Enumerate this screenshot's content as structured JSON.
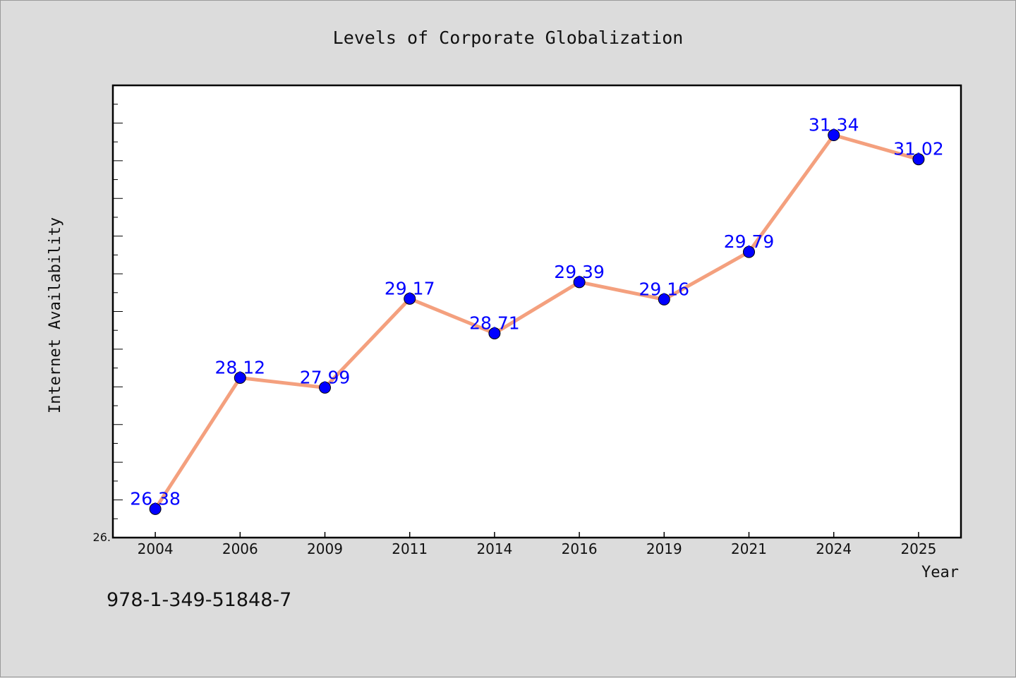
{
  "chart_data": {
    "type": "line",
    "title": "Levels of Corporate Globalization",
    "xlabel": "Year",
    "ylabel": "Internet Availability",
    "categories": [
      "2004",
      "2006",
      "2009",
      "2011",
      "2014",
      "2016",
      "2019",
      "2021",
      "2024",
      "2025"
    ],
    "series": [
      {
        "values": [
          26.38,
          28.12,
          27.99,
          29.17,
          28.71,
          29.39,
          29.16,
          29.79,
          31.34,
          31.02
        ]
      }
    ],
    "data_labels": [
      "26.38",
      "28.12",
      "27.99",
      "29.17",
      "28.71",
      "29.39",
      "29.16",
      "29.79",
      "31.34",
      "31.02"
    ],
    "y_tick_label": "26.",
    "ylim": [
      26.0,
      32.0
    ],
    "grid": false,
    "legend": "none",
    "colors": {
      "line": "#f4a07e",
      "marker": "#0000ff",
      "label": "#0000ff",
      "background": "#dcdcdc",
      "plot_background": "#ffffff"
    }
  },
  "footer": {
    "isbn": "978-1-349-51848-7"
  }
}
